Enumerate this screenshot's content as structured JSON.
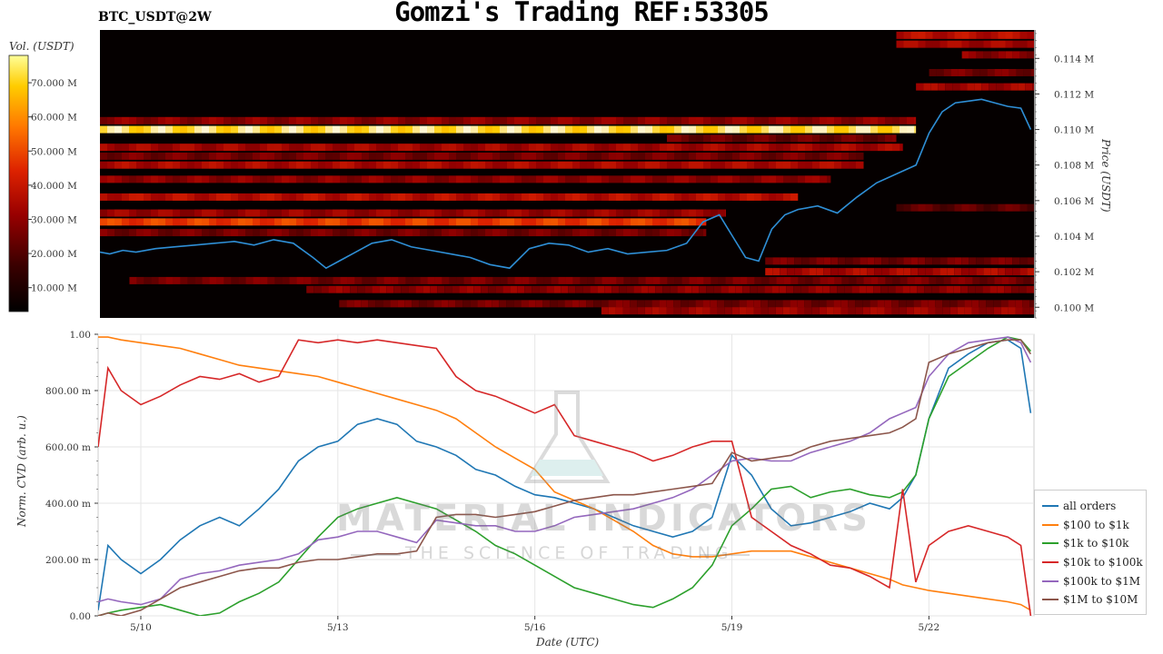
{
  "header": {
    "title": "Gomzi's Trading REF:53305",
    "pair": "BTC_USDT@2W"
  },
  "chart_data": [
    {
      "type": "heatmap",
      "name": "orderbook-heatmap",
      "colorbar_label": "Vol. (USDT)",
      "colorbar_ticks": [
        "10.000 M",
        "20.000 M",
        "30.000 M",
        "40.000 M",
        "50.000 M",
        "60.000 M",
        "70.000 M"
      ],
      "colorbar_values": [
        10,
        20,
        30,
        40,
        50,
        60,
        70
      ],
      "colorbar_range": [
        3,
        78
      ],
      "ylabel": "Price (USDT)",
      "y_ticks": [
        "0.100 M",
        "0.102 M",
        "0.104 M",
        "0.106 M",
        "0.108 M",
        "0.110 M",
        "0.112 M",
        "0.114 M"
      ],
      "y_tick_values": [
        0.1,
        0.102,
        0.104,
        0.106,
        0.108,
        0.11,
        0.112,
        0.114
      ],
      "ylim": [
        0.0994,
        0.1156
      ],
      "xlim": [
        9.35,
        23.6
      ],
      "price_series": {
        "name": "price",
        "x": [
          9.35,
          9.5,
          9.7,
          9.9,
          10.2,
          10.5,
          10.8,
          11.1,
          11.4,
          11.7,
          12.0,
          12.3,
          12.6,
          12.8,
          13.0,
          13.2,
          13.5,
          13.8,
          14.1,
          14.4,
          14.7,
          15.0,
          15.3,
          15.6,
          15.9,
          16.2,
          16.5,
          16.8,
          17.1,
          17.4,
          17.7,
          18.0,
          18.3,
          18.55,
          18.8,
          19.0,
          19.2,
          19.4,
          19.6,
          19.8,
          20.0,
          20.3,
          20.6,
          20.9,
          21.2,
          21.5,
          21.8,
          22.0,
          22.2,
          22.4,
          22.6,
          22.8,
          23.0,
          23.2,
          23.4,
          23.55
        ],
        "y": [
          0.1031,
          0.103,
          0.1032,
          0.1031,
          0.1033,
          0.1034,
          0.1035,
          0.1036,
          0.1037,
          0.1035,
          0.1038,
          0.1036,
          0.1028,
          0.1022,
          0.1026,
          0.103,
          0.1036,
          0.1038,
          0.1034,
          0.1032,
          0.103,
          0.1028,
          0.1024,
          0.1022,
          0.1033,
          0.1036,
          0.1035,
          0.1031,
          0.1033,
          0.103,
          0.1031,
          0.1032,
          0.1036,
          0.1048,
          0.1052,
          0.104,
          0.1028,
          0.1026,
          0.1044,
          0.1052,
          0.1055,
          0.1057,
          0.1053,
          0.1062,
          0.107,
          0.1075,
          0.108,
          0.1098,
          0.111,
          0.1115,
          0.1116,
          0.1117,
          0.1115,
          0.1113,
          0.1112,
          0.11
        ]
      },
      "levels": [
        {
          "y": 0.11,
          "x0": 9.35,
          "x1": 21.8,
          "v": 0.92
        },
        {
          "y": 0.1105,
          "x0": 9.35,
          "x1": 21.8,
          "v": 0.35
        },
        {
          "y": 0.109,
          "x0": 9.35,
          "x1": 21.6,
          "v": 0.4
        },
        {
          "y": 0.1085,
          "x0": 9.35,
          "x1": 21.0,
          "v": 0.3
        },
        {
          "y": 0.108,
          "x0": 9.35,
          "x1": 21.0,
          "v": 0.42
        },
        {
          "y": 0.1072,
          "x0": 9.35,
          "x1": 20.5,
          "v": 0.35
        },
        {
          "y": 0.1062,
          "x0": 9.35,
          "x1": 20.0,
          "v": 0.45
        },
        {
          "y": 0.1053,
          "x0": 9.35,
          "x1": 18.9,
          "v": 0.38
        },
        {
          "y": 0.1048,
          "x0": 9.35,
          "x1": 18.6,
          "v": 0.6
        },
        {
          "y": 0.1042,
          "x0": 9.35,
          "x1": 18.6,
          "v": 0.3
        },
        {
          "y": 0.1015,
          "x0": 9.8,
          "x1": 23.6,
          "v": 0.3
        },
        {
          "y": 0.101,
          "x0": 12.5,
          "x1": 23.6,
          "v": 0.35
        },
        {
          "y": 0.1002,
          "x0": 13.0,
          "x1": 23.6,
          "v": 0.3
        },
        {
          "y": 0.0998,
          "x0": 17.0,
          "x1": 23.6,
          "v": 0.38
        },
        {
          "y": 0.102,
          "x0": 19.5,
          "x1": 23.6,
          "v": 0.42
        },
        {
          "y": 0.1026,
          "x0": 19.5,
          "x1": 23.6,
          "v": 0.3
        },
        {
          "y": 0.1148,
          "x0": 21.5,
          "x1": 23.6,
          "v": 0.4
        },
        {
          "y": 0.1153,
          "x0": 21.5,
          "x1": 23.6,
          "v": 0.45
        },
        {
          "y": 0.1142,
          "x0": 22.5,
          "x1": 23.6,
          "v": 0.35
        },
        {
          "y": 0.1132,
          "x0": 22.0,
          "x1": 23.6,
          "v": 0.3
        },
        {
          "y": 0.1124,
          "x0": 21.8,
          "x1": 23.6,
          "v": 0.4
        },
        {
          "y": 0.1095,
          "x0": 18.0,
          "x1": 21.5,
          "v": 0.28
        },
        {
          "y": 0.1056,
          "x0": 21.5,
          "x1": 23.6,
          "v": 0.25
        }
      ]
    },
    {
      "type": "line",
      "name": "normalized-cvd",
      "xlabel": "Date (UTC)",
      "ylabel": "Norm. CVD (arb. u.)",
      "x_ticks": [
        "5/10",
        "5/13",
        "5/16",
        "5/19",
        "5/22"
      ],
      "x_tick_values": [
        10,
        13,
        16,
        19,
        22
      ],
      "xlim": [
        9.35,
        23.6
      ],
      "y_ticks": [
        "0.00",
        "200.00 m",
        "400.00 m",
        "600.00 m",
        "800.00 m",
        "1.00"
      ],
      "y_tick_values": [
        0,
        0.2,
        0.4,
        0.6,
        0.8,
        1.0
      ],
      "ylim": [
        0,
        1.0
      ],
      "grid": true,
      "legend_position": "right",
      "x": [
        9.35,
        9.5,
        9.7,
        10.0,
        10.3,
        10.6,
        10.9,
        11.2,
        11.5,
        11.8,
        12.1,
        12.4,
        12.7,
        13.0,
        13.3,
        13.6,
        13.9,
        14.2,
        14.5,
        14.8,
        15.1,
        15.4,
        15.7,
        16.0,
        16.3,
        16.6,
        16.9,
        17.2,
        17.5,
        17.8,
        18.1,
        18.4,
        18.7,
        19.0,
        19.3,
        19.6,
        19.9,
        20.2,
        20.5,
        20.8,
        21.1,
        21.4,
        21.6,
        21.8,
        22.0,
        22.3,
        22.6,
        22.9,
        23.2,
        23.4,
        23.55
      ],
      "series": [
        {
          "name": "all orders",
          "color": "#1f77b4",
          "values": [
            0.02,
            0.25,
            0.2,
            0.15,
            0.2,
            0.27,
            0.32,
            0.35,
            0.32,
            0.38,
            0.45,
            0.55,
            0.6,
            0.62,
            0.68,
            0.7,
            0.68,
            0.62,
            0.6,
            0.57,
            0.52,
            0.5,
            0.46,
            0.43,
            0.42,
            0.4,
            0.38,
            0.35,
            0.32,
            0.3,
            0.28,
            0.3,
            0.35,
            0.57,
            0.5,
            0.38,
            0.32,
            0.33,
            0.35,
            0.37,
            0.4,
            0.38,
            0.42,
            0.5,
            0.7,
            0.88,
            0.93,
            0.97,
            0.98,
            0.95,
            0.72
          ]
        },
        {
          "name": "$100 to $1k",
          "color": "#ff7f0e",
          "values": [
            0.99,
            0.99,
            0.98,
            0.97,
            0.96,
            0.95,
            0.93,
            0.91,
            0.89,
            0.88,
            0.87,
            0.86,
            0.85,
            0.83,
            0.81,
            0.79,
            0.77,
            0.75,
            0.73,
            0.7,
            0.65,
            0.6,
            0.56,
            0.52,
            0.44,
            0.41,
            0.38,
            0.34,
            0.3,
            0.25,
            0.22,
            0.21,
            0.21,
            0.22,
            0.23,
            0.23,
            0.23,
            0.21,
            0.19,
            0.17,
            0.15,
            0.13,
            0.11,
            0.1,
            0.09,
            0.08,
            0.07,
            0.06,
            0.05,
            0.04,
            0.02
          ]
        },
        {
          "name": "$1k to $10k",
          "color": "#2ca02c",
          "values": [
            0.0,
            0.01,
            0.02,
            0.03,
            0.04,
            0.02,
            0.0,
            0.01,
            0.05,
            0.08,
            0.12,
            0.2,
            0.28,
            0.35,
            0.38,
            0.4,
            0.42,
            0.4,
            0.38,
            0.34,
            0.3,
            0.25,
            0.22,
            0.18,
            0.14,
            0.1,
            0.08,
            0.06,
            0.04,
            0.03,
            0.06,
            0.1,
            0.18,
            0.32,
            0.38,
            0.45,
            0.46,
            0.42,
            0.44,
            0.45,
            0.43,
            0.42,
            0.44,
            0.5,
            0.7,
            0.85,
            0.9,
            0.95,
            0.99,
            0.98,
            0.94
          ]
        },
        {
          "name": "$10k to $100k",
          "color": "#d62728",
          "values": [
            0.6,
            0.88,
            0.8,
            0.75,
            0.78,
            0.82,
            0.85,
            0.84,
            0.86,
            0.83,
            0.85,
            0.98,
            0.97,
            0.98,
            0.97,
            0.98,
            0.97,
            0.96,
            0.95,
            0.85,
            0.8,
            0.78,
            0.75,
            0.72,
            0.75,
            0.64,
            0.62,
            0.6,
            0.58,
            0.55,
            0.57,
            0.6,
            0.62,
            0.62,
            0.35,
            0.3,
            0.25,
            0.22,
            0.18,
            0.17,
            0.14,
            0.1,
            0.45,
            0.12,
            0.25,
            0.3,
            0.32,
            0.3,
            0.28,
            0.25,
            0.0
          ]
        },
        {
          "name": "$100k to $1M",
          "color": "#9467bd",
          "values": [
            0.05,
            0.06,
            0.05,
            0.04,
            0.06,
            0.13,
            0.15,
            0.16,
            0.18,
            0.19,
            0.2,
            0.22,
            0.27,
            0.28,
            0.3,
            0.3,
            0.28,
            0.26,
            0.34,
            0.33,
            0.32,
            0.32,
            0.3,
            0.3,
            0.32,
            0.35,
            0.36,
            0.37,
            0.38,
            0.4,
            0.42,
            0.45,
            0.5,
            0.55,
            0.56,
            0.55,
            0.55,
            0.58,
            0.6,
            0.62,
            0.65,
            0.7,
            0.72,
            0.74,
            0.85,
            0.93,
            0.97,
            0.98,
            0.99,
            0.97,
            0.9
          ]
        },
        {
          "name": "$1M to $10M",
          "color": "#8c564b",
          "values": [
            0.0,
            0.01,
            0.0,
            0.02,
            0.06,
            0.1,
            0.12,
            0.14,
            0.16,
            0.17,
            0.17,
            0.19,
            0.2,
            0.2,
            0.21,
            0.22,
            0.22,
            0.23,
            0.35,
            0.36,
            0.36,
            0.35,
            0.36,
            0.37,
            0.39,
            0.41,
            0.42,
            0.43,
            0.43,
            0.44,
            0.45,
            0.46,
            0.47,
            0.58,
            0.55,
            0.56,
            0.57,
            0.6,
            0.62,
            0.63,
            0.64,
            0.65,
            0.67,
            0.7,
            0.9,
            0.93,
            0.95,
            0.97,
            0.98,
            0.98,
            0.93
          ]
        }
      ]
    }
  ],
  "watermark": {
    "line1": "MATERIAL INDICATORS",
    "line2": "THE SCIENCE OF TRADING"
  }
}
